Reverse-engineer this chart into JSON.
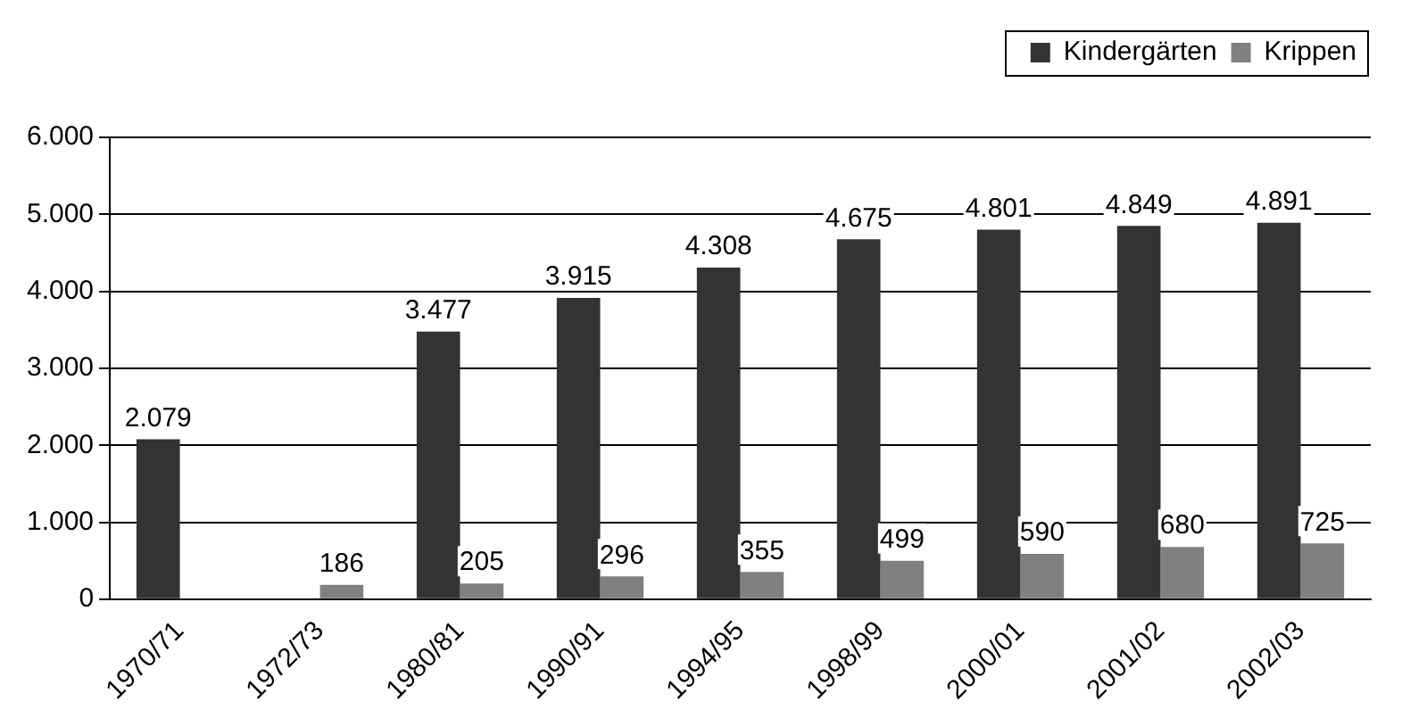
{
  "chart_data": {
    "type": "bar",
    "categories": [
      "1970/71",
      "1972/73",
      "1980/81",
      "1990/91",
      "1994/95",
      "1998/99",
      "2000/01",
      "2001/02",
      "2002/03"
    ],
    "series": [
      {
        "name": "Kindergärten",
        "color": "#333333",
        "values": [
          2079,
          null,
          3477,
          3915,
          4308,
          4675,
          4801,
          4849,
          4891
        ],
        "value_labels": [
          "2.079",
          null,
          "3.477",
          "3.915",
          "4.308",
          "4.675",
          "4.801",
          "4.849",
          "4.891"
        ]
      },
      {
        "name": "Krippen",
        "color": "#808080",
        "values": [
          null,
          186,
          205,
          296,
          355,
          499,
          590,
          680,
          725
        ],
        "value_labels": [
          null,
          "186",
          "205",
          "296",
          "355",
          "499",
          "590",
          "680",
          "725"
        ]
      }
    ],
    "ylim": [
      0,
      6000
    ],
    "yticks": [
      {
        "value": 0,
        "label": "0"
      },
      {
        "value": 1000,
        "label": "1.000"
      },
      {
        "value": 2000,
        "label": "2.000"
      },
      {
        "value": 3000,
        "label": "3.000"
      },
      {
        "value": 4000,
        "label": "4.000"
      },
      {
        "value": 5000,
        "label": "5.000"
      },
      {
        "value": 6000,
        "label": "6.000"
      }
    ],
    "grid": "y",
    "legend": "top right"
  }
}
